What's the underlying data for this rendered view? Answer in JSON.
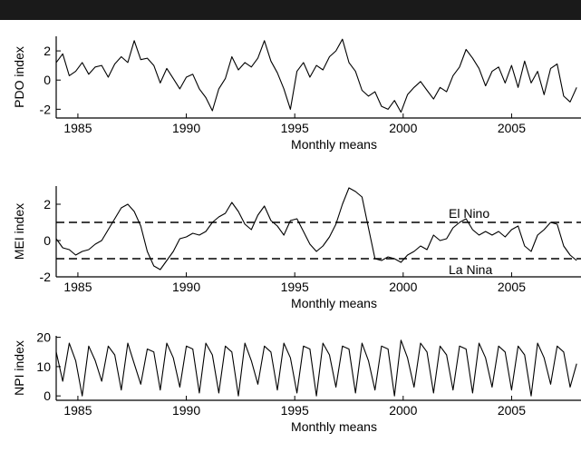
{
  "chart_data": [
    {
      "type": "line",
      "xlabel": "Monthly means",
      "ylabel": "PDO index",
      "xlim": [
        1984.0,
        2008.2
      ],
      "ylim": [
        -2.6,
        3.0
      ],
      "xticks": [
        1985,
        1990,
        1995,
        2000,
        2005
      ],
      "yticks": [
        -2,
        0,
        2
      ],
      "grid": false,
      "series": [
        {
          "x": [
            1984.0,
            1984.3,
            1984.6,
            1984.9,
            1985.2,
            1985.5,
            1985.8,
            1986.1,
            1986.4,
            1986.7,
            1987.0,
            1987.3,
            1987.6,
            1987.9,
            1988.2,
            1988.5,
            1988.8,
            1989.1,
            1989.4,
            1989.7,
            1990.0,
            1990.3,
            1990.6,
            1990.9,
            1991.2,
            1991.5,
            1991.8,
            1992.1,
            1992.4,
            1992.7,
            1993.0,
            1993.3,
            1993.6,
            1993.9,
            1994.2,
            1994.5,
            1994.8,
            1995.1,
            1995.4,
            1995.7,
            1996.0,
            1996.3,
            1996.6,
            1996.9,
            1997.2,
            1997.5,
            1997.8,
            1998.1,
            1998.4,
            1998.7,
            1999.0,
            1999.3,
            1999.6,
            1999.9,
            2000.2,
            2000.5,
            2000.8,
            2001.1,
            2001.4,
            2001.7,
            2002.0,
            2002.3,
            2002.6,
            2002.9,
            2003.2,
            2003.5,
            2003.8,
            2004.1,
            2004.4,
            2004.7,
            2005.0,
            2005.3,
            2005.6,
            2005.9,
            2006.2,
            2006.5,
            2006.8,
            2007.1,
            2007.4,
            2007.7,
            2008.0
          ],
          "y": [
            1.2,
            1.8,
            0.3,
            0.6,
            1.2,
            0.4,
            0.9,
            1.0,
            0.2,
            1.1,
            1.6,
            1.2,
            2.7,
            1.4,
            1.5,
            1.0,
            -0.2,
            0.8,
            0.1,
            -0.6,
            0.2,
            0.4,
            -0.6,
            -1.2,
            -2.1,
            -0.6,
            0.1,
            1.6,
            0.7,
            1.2,
            0.9,
            1.5,
            2.7,
            1.3,
            0.5,
            -0.6,
            -2.0,
            0.6,
            1.2,
            0.2,
            1.0,
            0.7,
            1.6,
            2.0,
            2.8,
            1.2,
            0.6,
            -0.7,
            -1.1,
            -0.8,
            -1.8,
            -2.0,
            -1.4,
            -2.2,
            -1.0,
            -0.5,
            -0.1,
            -0.7,
            -1.3,
            -0.5,
            -0.8,
            0.3,
            0.9,
            2.1,
            1.5,
            0.8,
            -0.4,
            0.6,
            0.9,
            -0.2,
            1.0,
            -0.5,
            1.3,
            -0.2,
            0.6,
            -1.0,
            0.8,
            1.1,
            -1.1,
            -1.5,
            -0.5
          ]
        }
      ]
    },
    {
      "type": "line",
      "xlabel": "Monthly means",
      "ylabel": "MEI index",
      "xlim": [
        1984.0,
        2008.2
      ],
      "ylim": [
        -2.0,
        3.0
      ],
      "xticks": [
        1985,
        1990,
        1995,
        2000,
        2005
      ],
      "yticks": [
        -2,
        0,
        2
      ],
      "grid": false,
      "annotations": [
        "El Nino",
        "La Nina"
      ],
      "thresholds": [
        1.0,
        -1.0
      ],
      "series": [
        {
          "x": [
            1984.0,
            1984.3,
            1984.6,
            1984.9,
            1985.2,
            1985.5,
            1985.8,
            1986.1,
            1986.4,
            1986.7,
            1987.0,
            1987.3,
            1987.6,
            1987.9,
            1988.2,
            1988.5,
            1988.8,
            1989.1,
            1989.4,
            1989.7,
            1990.0,
            1990.3,
            1990.6,
            1990.9,
            1991.2,
            1991.5,
            1991.8,
            1992.1,
            1992.4,
            1992.7,
            1993.0,
            1993.3,
            1993.6,
            1993.9,
            1994.2,
            1994.5,
            1994.8,
            1995.1,
            1995.4,
            1995.7,
            1996.0,
            1996.3,
            1996.6,
            1996.9,
            1997.2,
            1997.5,
            1997.8,
            1998.1,
            1998.4,
            1998.7,
            1999.0,
            1999.3,
            1999.6,
            1999.9,
            2000.2,
            2000.5,
            2000.8,
            2001.1,
            2001.4,
            2001.7,
            2002.0,
            2002.3,
            2002.6,
            2002.9,
            2003.2,
            2003.5,
            2003.8,
            2004.1,
            2004.4,
            2004.7,
            2005.0,
            2005.3,
            2005.6,
            2005.9,
            2006.2,
            2006.5,
            2006.8,
            2007.1,
            2007.4,
            2007.7,
            2008.0
          ],
          "y": [
            0.1,
            -0.4,
            -0.5,
            -0.8,
            -0.6,
            -0.5,
            -0.2,
            0.0,
            0.6,
            1.2,
            1.8,
            2.0,
            1.6,
            0.8,
            -0.6,
            -1.4,
            -1.6,
            -1.1,
            -0.6,
            0.1,
            0.2,
            0.4,
            0.3,
            0.5,
            1.0,
            1.3,
            1.5,
            2.1,
            1.6,
            0.9,
            0.6,
            1.4,
            1.9,
            1.1,
            0.8,
            0.3,
            1.1,
            1.2,
            0.5,
            -0.2,
            -0.6,
            -0.3,
            0.2,
            0.9,
            2.0,
            2.9,
            2.7,
            2.4,
            0.7,
            -1.0,
            -1.1,
            -0.9,
            -1.0,
            -1.2,
            -0.8,
            -0.6,
            -0.3,
            -0.5,
            0.3,
            0.0,
            0.1,
            0.7,
            1.0,
            1.2,
            0.6,
            0.3,
            0.5,
            0.3,
            0.5,
            0.2,
            0.6,
            0.8,
            -0.3,
            -0.6,
            0.3,
            0.6,
            1.0,
            0.9,
            -0.3,
            -0.8,
            -1.1
          ]
        }
      ]
    },
    {
      "type": "line",
      "xlabel": "Monthly means",
      "ylabel": "NPI index",
      "xlim": [
        1984.0,
        2008.2
      ],
      "ylim": [
        -1.5,
        20.5
      ],
      "xticks": [
        1985,
        1990,
        1995,
        2000,
        2005
      ],
      "yticks": [
        0,
        10,
        20
      ],
      "grid": false,
      "series": [
        {
          "x": [
            1984.0,
            1984.3,
            1984.6,
            1984.9,
            1985.2,
            1985.5,
            1985.8,
            1986.1,
            1986.4,
            1986.7,
            1987.0,
            1987.3,
            1987.6,
            1987.9,
            1988.2,
            1988.5,
            1988.8,
            1989.1,
            1989.4,
            1989.7,
            1990.0,
            1990.3,
            1990.6,
            1990.9,
            1991.2,
            1991.5,
            1991.8,
            1992.1,
            1992.4,
            1992.7,
            1993.0,
            1993.3,
            1993.6,
            1993.9,
            1994.2,
            1994.5,
            1994.8,
            1995.1,
            1995.4,
            1995.7,
            1996.0,
            1996.3,
            1996.6,
            1996.9,
            1997.2,
            1997.5,
            1997.8,
            1998.1,
            1998.4,
            1998.7,
            1999.0,
            1999.3,
            1999.6,
            1999.9,
            2000.2,
            2000.5,
            2000.8,
            2001.1,
            2001.4,
            2001.7,
            2002.0,
            2002.3,
            2002.6,
            2002.9,
            2003.2,
            2003.5,
            2003.8,
            2004.1,
            2004.4,
            2004.7,
            2005.0,
            2005.3,
            2005.6,
            2005.9,
            2006.2,
            2006.5,
            2006.8,
            2007.1,
            2007.4,
            2007.7,
            2008.0
          ],
          "y": [
            15,
            5,
            18,
            12,
            0,
            17,
            12,
            5,
            17,
            14,
            2,
            18,
            11,
            4,
            16,
            15,
            2,
            18,
            13,
            3,
            17,
            16,
            1,
            18,
            14,
            1,
            17,
            15,
            0,
            18,
            12,
            4,
            17,
            15,
            2,
            18,
            13,
            1,
            17,
            16,
            0,
            18,
            14,
            3,
            17,
            16,
            1,
            18,
            12,
            2,
            17,
            16,
            0,
            19,
            13,
            3,
            18,
            15,
            1,
            17,
            14,
            2,
            17,
            16,
            1,
            18,
            13,
            3,
            17,
            15,
            2,
            17,
            14,
            0,
            18,
            13,
            4,
            17,
            15,
            3,
            11
          ]
        }
      ]
    }
  ]
}
